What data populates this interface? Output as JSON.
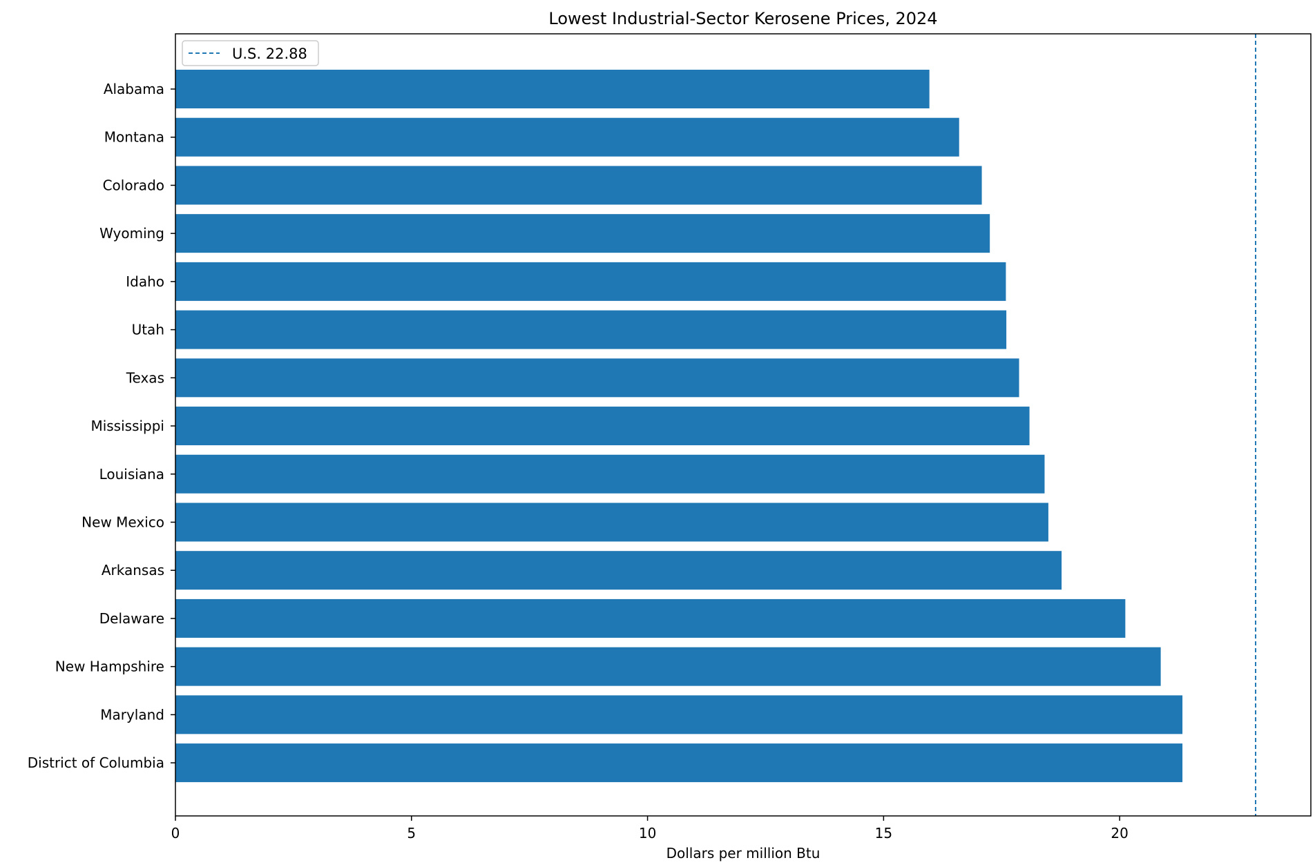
{
  "chart_data": {
    "type": "bar",
    "orientation": "horizontal",
    "title": "Lowest Industrial-Sector Kerosene Prices, 2024",
    "xlabel": "Dollars per million Btu",
    "ylabel": "",
    "xlim": [
      0,
      24.05
    ],
    "x_ticks": [
      0,
      5,
      10,
      15,
      20
    ],
    "x_tick_labels": [
      "0",
      "5",
      "10",
      "15",
      "20"
    ],
    "categories": [
      "Alabama",
      "Montana",
      "Colorado",
      "Wyoming",
      "Idaho",
      "Utah",
      "Texas",
      "Mississippi",
      "Louisiana",
      "New Mexico",
      "Arkansas",
      "Delaware",
      "New Hampshire",
      "Maryland",
      "District of Columbia"
    ],
    "values": [
      15.97,
      16.6,
      17.08,
      17.25,
      17.59,
      17.6,
      17.87,
      18.09,
      18.41,
      18.49,
      18.77,
      20.12,
      20.87,
      21.33,
      21.33
    ],
    "bar_color": "#1f77b4",
    "reference_line": {
      "value": 22.88,
      "label": "U.S. 22.88",
      "style": "dashed",
      "color": "#1f77b4"
    },
    "legend": {
      "placement": "top-left",
      "entries": [
        "U.S. 22.88"
      ]
    },
    "grid": false
  }
}
